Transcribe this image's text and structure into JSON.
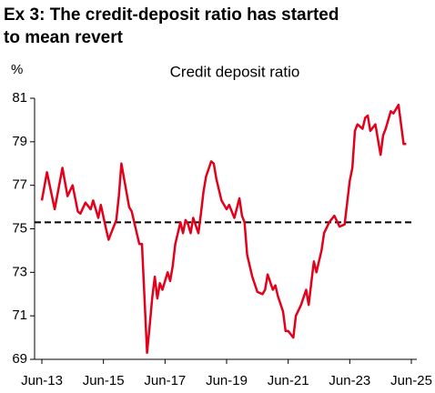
{
  "chart_data": {
    "type": "line",
    "title_lines": [
      "Ex 3: The credit-deposit ratio has started",
      "to mean revert"
    ],
    "subtitle": "Credit deposit ratio",
    "ylabel": "%",
    "x": [
      "Jun-13",
      "Aug-13",
      "Nov-13",
      "Feb-14",
      "Apr-14",
      "Jun-14",
      "Aug-14",
      "Sep-14",
      "Nov-14",
      "Jan-15",
      "Feb-15",
      "Apr-15",
      "May-15",
      "Jul-15",
      "Aug-15",
      "Sep-15",
      "Nov-15",
      "Dec-15",
      "Jan-16",
      "Apr-16",
      "May-16",
      "Jul-16",
      "Aug-16",
      "Sep-16",
      "Nov-16",
      "Dec-16",
      "Jan-17",
      "Feb-17",
      "Mar-17",
      "Apr-17",
      "May-17",
      "Jul-17",
      "Aug-17",
      "Sep-17",
      "Oct-17",
      "Dec-17",
      "Jan-18",
      "Feb-18",
      "Mar-18",
      "Apr-18",
      "May-18",
      "Jul-18",
      "Aug-18",
      "Sep-18",
      "Oct-18",
      "Dec-18",
      "Jan-19",
      "Feb-19",
      "Apr-19",
      "Jun-19",
      "Jul-19",
      "Sep-19",
      "Nov-19",
      "Dec-19",
      "Jan-20",
      "Feb-20",
      "Apr-20",
      "Jun-20",
      "Aug-20",
      "Sep-20",
      "Oct-20",
      "Dec-20",
      "Jan-21",
      "Feb-21",
      "Apr-21",
      "May-21",
      "Jun-21",
      "Aug-21",
      "Sep-21",
      "Nov-21",
      "Jan-22",
      "Feb-22",
      "Mar-22",
      "Apr-22",
      "May-22",
      "Jul-22",
      "Aug-22",
      "Oct-22",
      "Dec-22",
      "Feb-23",
      "Apr-23",
      "Jun-23",
      "Jul-23",
      "Aug-23",
      "Sep-23",
      "Nov-23",
      "Dec-23",
      "Jan-24",
      "Feb-24",
      "Apr-24",
      "Jun-24",
      "Jul-24",
      "Aug-24",
      "Oct-24",
      "Nov-24",
      "Jan-25",
      "Mar-25",
      "Apr-25"
    ],
    "series": [
      {
        "name": "Credit deposit ratio",
        "color": "#e3001b",
        "values": [
          76.3,
          77.6,
          75.9,
          77.8,
          76.5,
          77.0,
          75.8,
          75.7,
          76.2,
          75.9,
          76.3,
          75.5,
          76.1,
          75.0,
          74.5,
          74.8,
          75.4,
          76.5,
          78.0,
          76.0,
          75.8,
          74.8,
          74.3,
          74.3,
          69.3,
          70.5,
          71.8,
          72.8,
          71.8,
          72.5,
          72.2,
          73.0,
          72.6,
          73.3,
          74.3,
          75.3,
          74.8,
          75.4,
          75.2,
          74.8,
          75.5,
          74.8,
          75.7,
          76.7,
          77.4,
          78.1,
          78.0,
          77.3,
          76.3,
          75.9,
          76.1,
          75.5,
          76.4,
          75.6,
          75.3,
          73.8,
          72.8,
          72.1,
          72.0,
          72.2,
          72.9,
          72.2,
          72.4,
          71.9,
          71.2,
          70.3,
          70.3,
          70.0,
          71.0,
          71.5,
          72.2,
          71.5,
          72.5,
          73.5,
          73.0,
          74.0,
          74.8,
          75.3,
          75.6,
          75.1,
          75.2,
          77.2,
          77.8,
          79.5,
          79.8,
          79.6,
          80.1,
          80.2,
          79.5,
          79.8,
          78.4,
          79.3,
          79.6,
          80.4,
          80.3,
          80.7,
          78.9,
          78.9
        ]
      }
    ],
    "reference_line": 75.3,
    "xlim": [
      "Jun-13",
      "Jun-25"
    ],
    "xticks": [
      "Jun-13",
      "Jun-15",
      "Jun-17",
      "Jun-19",
      "Jun-21",
      "Jun-23",
      "Jun-25"
    ],
    "ylim": [
      69,
      81
    ],
    "yticks": [
      69,
      71,
      73,
      75,
      77,
      79,
      81
    ]
  }
}
